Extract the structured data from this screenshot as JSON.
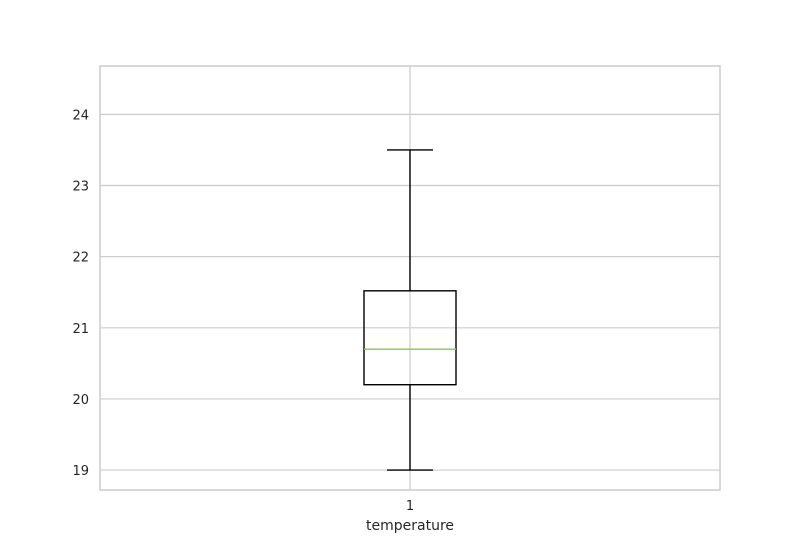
{
  "chart_data": {
    "type": "box",
    "title": "",
    "xlabel": "temperature",
    "ylabel": "",
    "categories": [
      "1"
    ],
    "ylim": [
      18.72,
      24.68
    ],
    "y_ticks": [
      "19",
      "20",
      "21",
      "22",
      "23",
      "24"
    ],
    "grid": true,
    "boxes": [
      {
        "category": "1",
        "whisker_low": 19.0,
        "q1": 20.2,
        "median": 20.7,
        "q3": 21.52,
        "whisker_high": 23.5
      }
    ],
    "colors": {
      "box": "#000000",
      "median": "#8fbc6f",
      "grid": "#cccccc",
      "frame": "#cccccc"
    }
  }
}
